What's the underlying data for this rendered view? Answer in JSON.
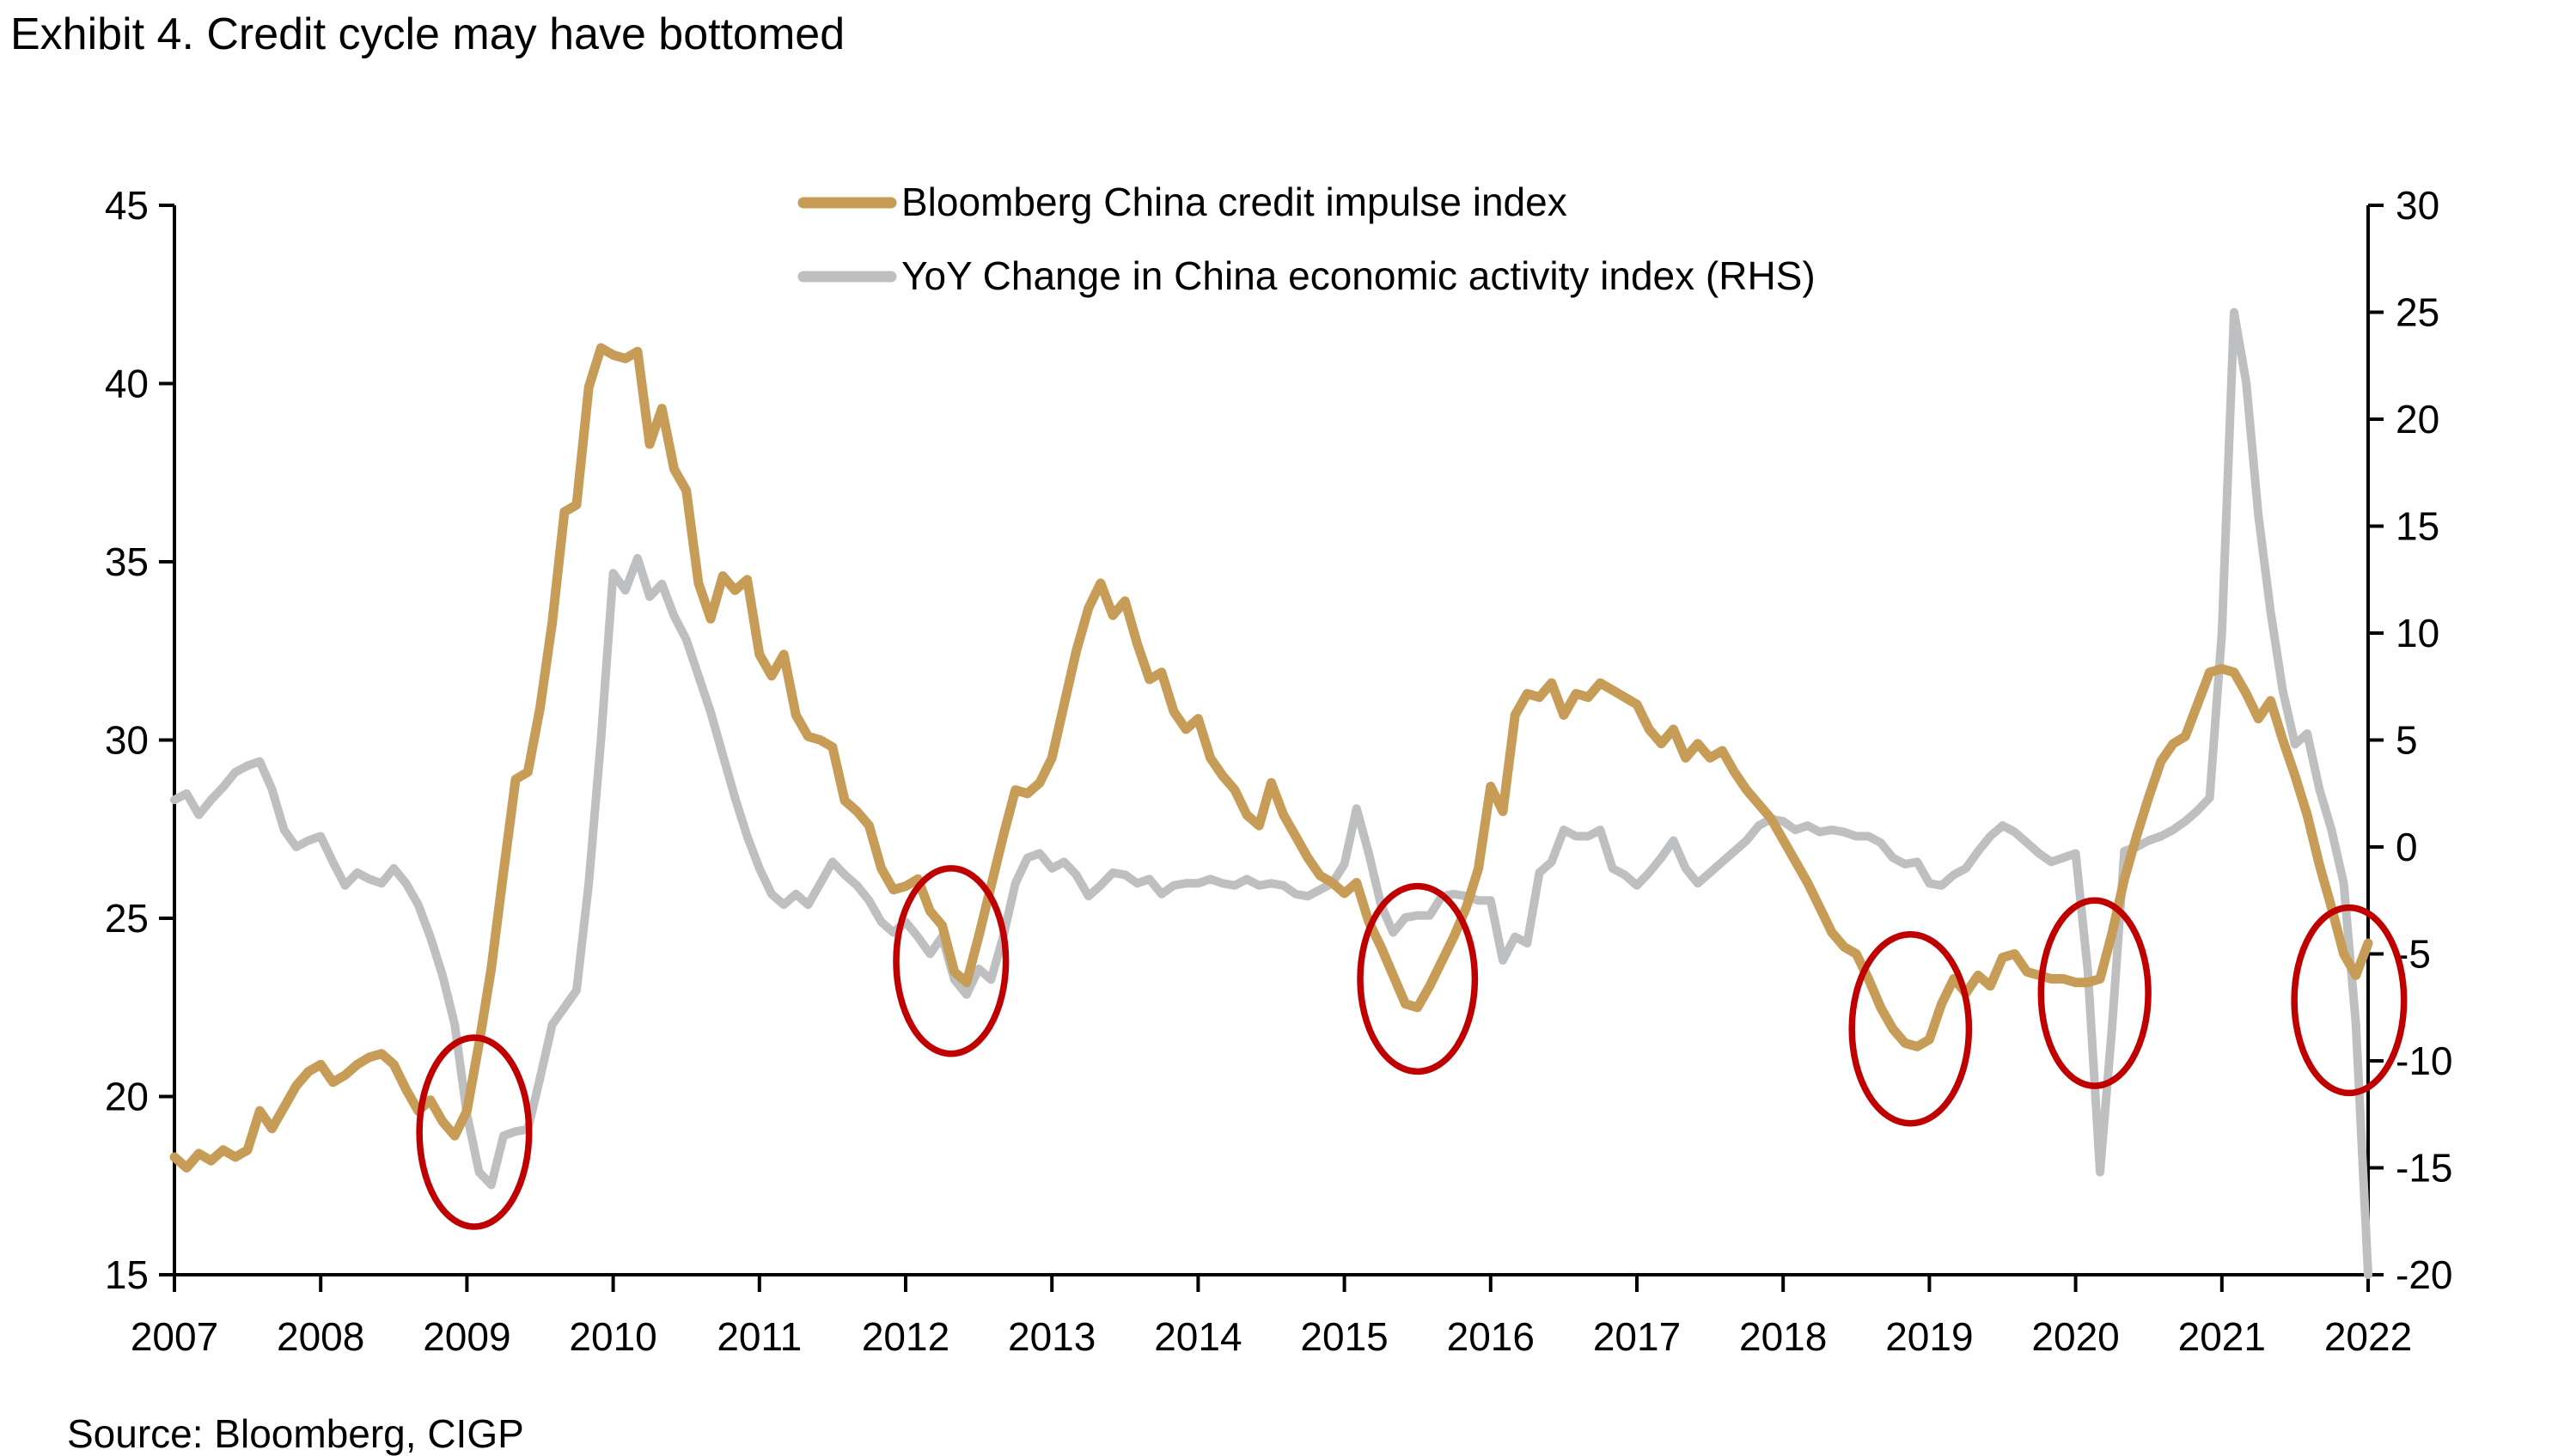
{
  "title": "Exhibit 4. Credit cycle may have bottomed",
  "source": "Source: Bloomberg, CIGP",
  "colors": {
    "credit_impulse": "#C79C56",
    "activity_index": "#BEBFC1",
    "annotation_red": "#C00000",
    "axis": "#000000",
    "text": "#000000"
  },
  "legend": {
    "items": [
      {
        "label": "Bloomberg China credit impulse index",
        "color": "#C79C56"
      },
      {
        "label": "YoY Change in China economic activity index (RHS)",
        "color": "#BEBFC1"
      }
    ]
  },
  "chart_data": {
    "type": "line",
    "title": "Exhibit 4. Credit cycle may have bottomed",
    "x_interval": "monthly",
    "x_start": "2007-01",
    "x_end": "2022-01",
    "x_tick_labels": [
      "2007",
      "2008",
      "2009",
      "2010",
      "2011",
      "2012",
      "2013",
      "2014",
      "2015",
      "2016",
      "2017",
      "2018",
      "2019",
      "2020",
      "2021",
      "2022"
    ],
    "left_axis": {
      "min": 15,
      "max": 45,
      "step": 5,
      "tick_labels": [
        "45",
        "40",
        "35",
        "30",
        "25",
        "20",
        "15"
      ]
    },
    "right_axis": {
      "min": -20,
      "max": 30,
      "step": 5,
      "tick_labels": [
        "30",
        "25",
        "20",
        "15",
        "10",
        "5",
        "0",
        "-5",
        "-10",
        "-15",
        "-20"
      ]
    },
    "grid": false,
    "legend_position": "top-center-inside",
    "series": [
      {
        "name": "Bloomberg China credit impulse index",
        "axis": "left",
        "color": "#C79C56",
        "values_by_year": [
          [
            18.3,
            18.0,
            18.4,
            18.2,
            18.5,
            18.3,
            18.5,
            19.6,
            19.1,
            19.7,
            20.3,
            20.7
          ],
          [
            20.9,
            20.4,
            20.6,
            20.9,
            21.1,
            21.2,
            20.9,
            20.2,
            19.6,
            19.9,
            19.3,
            18.9
          ],
          [
            19.6,
            21.5,
            23.6,
            26.3,
            28.9,
            29.1,
            30.9,
            33.3,
            36.4,
            36.6,
            39.9,
            41.0
          ],
          [
            40.8,
            40.7,
            40.9,
            38.3,
            39.3,
            37.6,
            37.0,
            34.4,
            33.4,
            34.6,
            34.2,
            34.5
          ],
          [
            32.4,
            31.8,
            32.4,
            30.7,
            30.1,
            30.0,
            29.8,
            28.3,
            28.0,
            27.6,
            26.4,
            25.8
          ],
          [
            25.9,
            26.1,
            25.2,
            24.8,
            23.5,
            23.2,
            24.5,
            25.9,
            27.3,
            28.6,
            28.5,
            28.8
          ],
          [
            29.5,
            31.0,
            32.5,
            33.7,
            34.4,
            33.5,
            33.9,
            32.7,
            31.7,
            31.9,
            30.8,
            30.3
          ],
          [
            30.6,
            29.5,
            29.0,
            28.6,
            27.9,
            27.6,
            28.8,
            27.9,
            27.3,
            26.7,
            26.2,
            26.0
          ],
          [
            25.7,
            26.0,
            24.9,
            24.2,
            23.4,
            22.6,
            22.5,
            23.1,
            23.8,
            24.5,
            25.3,
            26.4
          ],
          [
            28.7,
            28.0,
            30.7,
            31.3,
            31.2,
            31.6,
            30.7,
            31.3,
            31.2,
            31.6,
            31.4,
            31.2
          ],
          [
            31.0,
            30.3,
            29.9,
            30.3,
            29.5,
            29.9,
            29.5,
            29.7,
            29.1,
            28.6,
            28.2,
            27.8
          ],
          [
            27.2,
            26.6,
            26.0,
            25.3,
            24.6,
            24.2,
            24.0,
            23.3,
            22.5,
            21.9,
            21.5,
            21.4
          ],
          [
            21.6,
            22.6,
            23.3,
            22.9,
            23.4,
            23.1,
            23.9,
            24.0,
            23.5,
            23.4,
            23.3,
            23.3
          ],
          [
            23.2,
            23.2,
            23.3,
            24.6,
            26.1,
            27.3,
            28.4,
            29.4,
            29.9,
            30.1,
            31.0,
            31.9
          ],
          [
            32.0,
            31.9,
            31.3,
            30.6,
            31.1,
            30.0,
            29.0,
            27.9,
            26.5,
            25.3,
            24.0,
            23.4
          ],
          [
            24.3
          ]
        ]
      },
      {
        "name": "YoY Change in China economic activity index (RHS)",
        "axis": "right",
        "color": "#BEBFC1",
        "values_by_year": [
          [
            2.2,
            2.5,
            1.5,
            2.2,
            2.8,
            3.5,
            3.8,
            4.0,
            2.7,
            0.8,
            0.0,
            0.3
          ],
          [
            0.5,
            -0.7,
            -1.8,
            -1.2,
            -1.5,
            -1.7,
            -1.0,
            -1.7,
            -2.7,
            -4.2,
            -6.0,
            -8.3
          ],
          [
            -12.5,
            -15.2,
            -15.8,
            -13.5,
            -13.3,
            -13.2,
            -10.8,
            -8.3,
            -7.5,
            -6.7,
            -1.7,
            5.0
          ],
          [
            12.8,
            12.0,
            13.5,
            11.7,
            12.3,
            10.8,
            9.7,
            8.0,
            6.3,
            4.3,
            2.3,
            0.5
          ],
          [
            -1.0,
            -2.2,
            -2.7,
            -2.2,
            -2.7,
            -1.7,
            -0.7,
            -1.3,
            -1.8,
            -2.5,
            -3.5,
            -4.0
          ],
          [
            -3.5,
            -4.2,
            -5.0,
            -4.2,
            -6.2,
            -6.9,
            -5.7,
            -6.2,
            -4.2,
            -1.7,
            -0.5,
            -0.3
          ],
          [
            -1.0,
            -0.7,
            -1.3,
            -2.3,
            -1.8,
            -1.2,
            -1.3,
            -1.7,
            -1.5,
            -2.2,
            -1.8,
            -1.7
          ],
          [
            -1.7,
            -1.5,
            -1.7,
            -1.8,
            -1.5,
            -1.8,
            -1.7,
            -1.8,
            -2.2,
            -2.3,
            -2.0,
            -1.7
          ],
          [
            -0.8,
            1.8,
            -0.3,
            -2.7,
            -4.0,
            -3.3,
            -3.2,
            -3.2,
            -2.3,
            -2.2,
            -2.3,
            -2.5
          ],
          [
            -2.5,
            -5.3,
            -4.2,
            -4.5,
            -1.2,
            -0.7,
            0.8,
            0.5,
            0.5,
            0.8,
            -1.0,
            -1.3
          ],
          [
            -1.8,
            -1.2,
            -0.5,
            0.3,
            -1.0,
            -1.7,
            -1.2,
            -0.7,
            -0.2,
            0.3,
            1.0,
            1.3
          ],
          [
            1.2,
            0.8,
            1.0,
            0.7,
            0.8,
            0.7,
            0.5,
            0.5,
            0.2,
            -0.5,
            -0.8,
            -0.7
          ],
          [
            -1.7,
            -1.8,
            -1.3,
            -1.0,
            -0.2,
            0.5,
            1.0,
            0.7,
            0.2,
            -0.3,
            -0.7,
            -0.5
          ],
          [
            -0.3,
            -5.8,
            -15.2,
            -8.3,
            -0.2,
            0.0,
            0.3,
            0.5,
            0.8,
            1.2,
            1.7,
            2.3
          ],
          [
            10.0,
            25.0,
            21.7,
            15.5,
            11.0,
            7.3,
            4.8,
            5.3,
            2.7,
            0.8,
            -1.7,
            -8.3
          ],
          [
            -20.0
          ]
        ]
      }
    ],
    "annotations": {
      "shape": "ellipse",
      "color": "#C00000",
      "meaning": "circled troughs of the credit cycle",
      "ellipses": [
        {
          "id": "circle-2009",
          "t": 2009.05,
          "v": 19.0,
          "rm": 4.5,
          "rv": 2.65
        },
        {
          "id": "circle-2012",
          "t": 2012.31,
          "v": 23.8,
          "rm": 4.5,
          "rv": 2.6
        },
        {
          "id": "circle-2015",
          "t": 2015.5,
          "v": 23.3,
          "rm": 4.7,
          "rv": 2.6
        },
        {
          "id": "circle-2018",
          "t": 2018.87,
          "v": 21.9,
          "rm": 4.8,
          "rv": 2.65
        },
        {
          "id": "circle-2020",
          "t": 2020.13,
          "v": 22.9,
          "rm": 4.4,
          "rv": 2.6
        },
        {
          "id": "circle-2021",
          "t": 2021.87,
          "v": 22.7,
          "rm": 4.5,
          "rv": 2.6
        }
      ]
    }
  }
}
